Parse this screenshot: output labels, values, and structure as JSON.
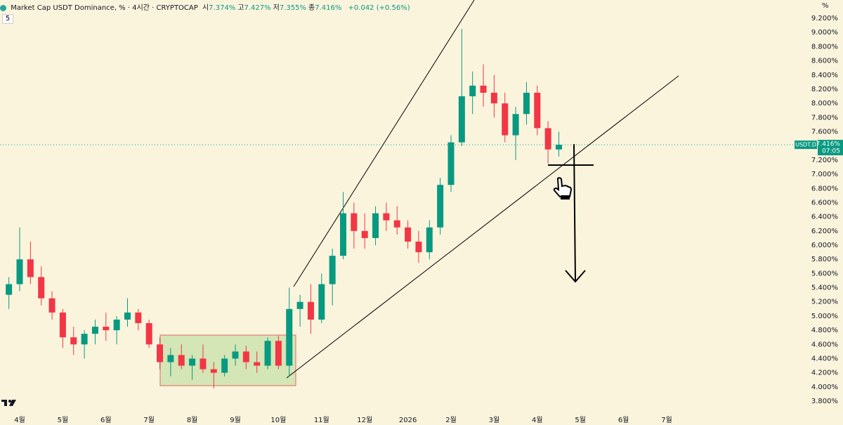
{
  "chart_data": {
    "type": "candlestick",
    "title": "Market Cap USDT Dominance, % · 4시간 · CRYPTOCAP",
    "ohlc_header": [
      {
        "prefix": "시",
        "text": "7.374%"
      },
      {
        "prefix": "고",
        "text": "7.427%"
      },
      {
        "prefix": "저",
        "text": "7.355%"
      },
      {
        "prefix": "종",
        "text": "7.416%"
      }
    ],
    "change_label": "+0.042 (+0.56%)",
    "indicator_count": "5",
    "unit": "%",
    "symbol": "USDT.D",
    "last_price_label": "7.416%",
    "countdown": "07:05",
    "up_color": "#089981",
    "down_color": "#f23645",
    "grid": false,
    "xlim": [
      -0.456,
      17.948
    ],
    "ylim": [
      3.612,
      9.458
    ],
    "xticks": [
      {
        "value": 0,
        "label": "4월"
      },
      {
        "value": 1,
        "label": "5월"
      },
      {
        "value": 2,
        "label": "6월"
      },
      {
        "value": 3,
        "label": "7월"
      },
      {
        "value": 4,
        "label": "8월"
      },
      {
        "value": 5,
        "label": "9월"
      },
      {
        "value": 6,
        "label": "10월"
      },
      {
        "value": 7,
        "label": "11월"
      },
      {
        "value": 8,
        "label": "12월"
      },
      {
        "value": 9,
        "label": "2026"
      },
      {
        "value": 10,
        "label": "2월"
      },
      {
        "value": 11,
        "label": "3월"
      },
      {
        "value": 12,
        "label": "4월"
      },
      {
        "value": 13,
        "label": "5월"
      },
      {
        "value": 14,
        "label": "6월"
      },
      {
        "value": 15,
        "label": "7월"
      }
    ],
    "yticks": [
      {
        "value": 3.8,
        "label": "3.800%"
      },
      {
        "value": 4.0,
        "label": "4.000%"
      },
      {
        "value": 4.2,
        "label": "4.200%"
      },
      {
        "value": 4.4,
        "label": "4.400%"
      },
      {
        "value": 4.6,
        "label": "4.600%"
      },
      {
        "value": 4.8,
        "label": "4.800%"
      },
      {
        "value": 5.0,
        "label": "5.000%"
      },
      {
        "value": 5.2,
        "label": "5.200%"
      },
      {
        "value": 5.4,
        "label": "5.400%"
      },
      {
        "value": 5.6,
        "label": "5.600%"
      },
      {
        "value": 5.8,
        "label": "5.800%"
      },
      {
        "value": 6.0,
        "label": "6.000%"
      },
      {
        "value": 6.2,
        "label": "6.200%"
      },
      {
        "value": 6.4,
        "label": "6.400%"
      },
      {
        "value": 6.6,
        "label": "6.600%"
      },
      {
        "value": 6.8,
        "label": "6.800%"
      },
      {
        "value": 7.0,
        "label": "7.000%"
      },
      {
        "value": 7.2,
        "label": "7.200%"
      },
      {
        "value": 7.6,
        "label": "7.600%"
      },
      {
        "value": 7.8,
        "label": "7.800%"
      },
      {
        "value": 8.0,
        "label": "8.000%"
      },
      {
        "value": 8.2,
        "label": "8.200%"
      },
      {
        "value": 8.4,
        "label": "8.400%"
      },
      {
        "value": 8.6,
        "label": "8.600%"
      },
      {
        "value": 8.8,
        "label": "8.800%"
      },
      {
        "value": 9.0,
        "label": "9.000%"
      },
      {
        "value": 9.2,
        "label": "9.200%"
      }
    ],
    "series": [
      {
        "name": "USDT.D",
        "x": [
          -0.25,
          0,
          0.25,
          0.5,
          0.75,
          1,
          1.25,
          1.5,
          1.75,
          2,
          2.25,
          2.5,
          2.75,
          3,
          3.25,
          3.5,
          3.75,
          4,
          4.25,
          4.5,
          4.75,
          5,
          5.25,
          5.5,
          5.75,
          6,
          6.25,
          6.5,
          6.75,
          7,
          7.25,
          7.5,
          7.75,
          8,
          8.25,
          8.5,
          8.75,
          9,
          9.25,
          9.5,
          9.75,
          10,
          10.25,
          10.5,
          10.75,
          11,
          11.25,
          11.5,
          11.75,
          12,
          12.25,
          12.5
        ],
        "open": [
          5.3,
          5.45,
          5.8,
          5.55,
          5.25,
          5.05,
          4.7,
          4.6,
          4.75,
          4.85,
          4.8,
          4.95,
          5.05,
          4.9,
          4.6,
          4.35,
          4.45,
          4.3,
          4.4,
          4.25,
          4.2,
          4.4,
          4.5,
          4.35,
          4.3,
          4.65,
          4.3,
          5.1,
          5.2,
          4.95,
          5.45,
          5.85,
          6.45,
          6.2,
          6.1,
          6.45,
          6.35,
          6.25,
          6.05,
          5.9,
          6.25,
          6.85,
          7.45,
          8.1,
          8.25,
          8.15,
          8.0,
          7.55,
          7.85,
          8.15,
          7.65,
          7.35
        ],
        "high": [
          5.55,
          6.25,
          6.05,
          5.7,
          5.35,
          5.1,
          4.85,
          4.8,
          4.95,
          5.05,
          5.0,
          5.25,
          5.1,
          4.95,
          4.7,
          4.55,
          4.6,
          4.45,
          4.6,
          4.35,
          4.45,
          4.6,
          4.58,
          4.5,
          4.7,
          4.72,
          5.4,
          5.3,
          5.45,
          5.6,
          5.95,
          6.75,
          6.6,
          6.45,
          6.55,
          6.6,
          6.55,
          6.35,
          6.2,
          6.35,
          6.95,
          7.55,
          9.05,
          8.45,
          8.55,
          8.4,
          8.15,
          7.95,
          8.3,
          8.25,
          7.75,
          7.6
        ],
        "low": [
          5.1,
          5.35,
          5.45,
          5.15,
          4.95,
          4.55,
          4.45,
          4.4,
          4.6,
          4.65,
          4.6,
          4.85,
          4.8,
          4.55,
          4.25,
          4.15,
          4.25,
          4.1,
          4.2,
          3.98,
          4.15,
          4.3,
          4.25,
          4.2,
          4.25,
          4.25,
          4.15,
          4.85,
          4.75,
          4.9,
          5.15,
          5.8,
          5.95,
          5.95,
          6.0,
          6.2,
          6.15,
          5.95,
          5.75,
          5.8,
          6.15,
          6.75,
          7.4,
          7.85,
          7.95,
          7.8,
          7.45,
          7.2,
          7.7,
          7.55,
          7.15,
          7.25
        ],
        "close": [
          5.45,
          5.8,
          5.55,
          5.25,
          5.05,
          4.7,
          4.6,
          4.75,
          4.85,
          4.8,
          4.95,
          5.05,
          4.9,
          4.6,
          4.35,
          4.45,
          4.3,
          4.4,
          4.25,
          4.2,
          4.4,
          4.5,
          4.35,
          4.3,
          4.65,
          4.3,
          5.1,
          5.2,
          4.95,
          5.45,
          5.85,
          6.45,
          6.2,
          6.1,
          6.45,
          6.35,
          6.25,
          6.05,
          5.9,
          6.25,
          6.85,
          7.45,
          8.1,
          8.25,
          8.15,
          8.0,
          7.55,
          7.85,
          8.15,
          7.65,
          7.35,
          7.416
        ]
      }
    ]
  }
}
